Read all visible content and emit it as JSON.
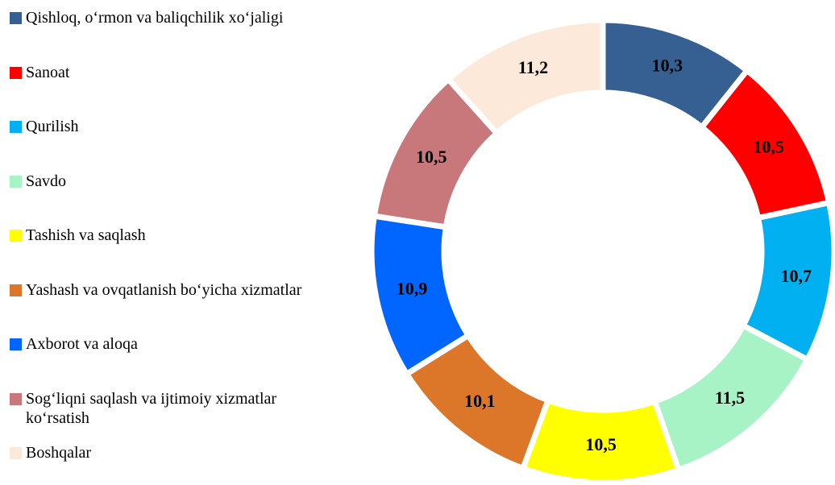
{
  "chart_data": {
    "type": "donut",
    "categories": [
      "Qishloq, o‘rmon va baliqchilik xo‘jaligi",
      "Sanoat",
      "Qurilish",
      "Savdo",
      "Tashish va saqlash",
      "Yashash va ovqatlanish bo‘yicha xizmatlar",
      "Axborot va aloqa",
      "Sog‘liqni saqlash va ijtimoiy xizmatlar ko‘rsatish",
      "Boshqalar"
    ],
    "values": [
      10.3,
      10.5,
      10.7,
      11.5,
      10.5,
      10.1,
      10.9,
      10.5,
      11.2
    ],
    "value_labels": [
      "10,3",
      "10,5",
      "10,7",
      "11,5",
      "10,5",
      "10,1",
      "10,9",
      "10,5",
      "11,2"
    ],
    "colors": [
      "#376092",
      "#ff0000",
      "#00b0f0",
      "#a8f3c6",
      "#ffff00",
      "#dc7628",
      "#0066ff",
      "#c8787b",
      "#fde9d9"
    ],
    "legend": "left"
  }
}
